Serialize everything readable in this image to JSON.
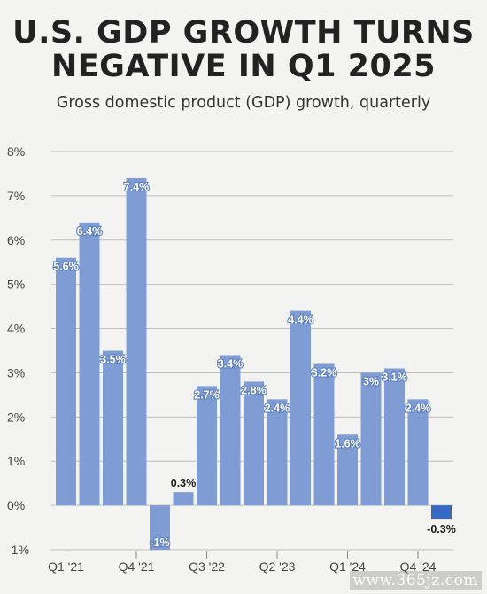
{
  "header": {
    "title_line1": "U.S. GDP GROWTH TURNS",
    "title_line2": "NEGATIVE IN Q1 2025",
    "subtitle": "Gross domestic product (GDP) growth, quarterly"
  },
  "watermark": "www.365jz.com",
  "colors": {
    "bar": "#7f9dd4",
    "bar_highlight": "#3768c4",
    "grid": "#bdbdbd",
    "axis_text": "#444444",
    "background": "#f3f3f2"
  },
  "chart_data": {
    "type": "bar",
    "title": "U.S. GDP GROWTH TURNS NEGATIVE IN Q1 2025",
    "subtitle": "Gross domestic product (GDP) growth, quarterly",
    "xlabel": "",
    "ylabel": "",
    "ylim": [
      -1,
      8
    ],
    "yticks": [
      -1,
      0,
      1,
      2,
      3,
      4,
      5,
      6,
      7,
      8
    ],
    "ytick_labels": [
      "-1%",
      "0%",
      "1%",
      "2%",
      "3%",
      "4%",
      "5%",
      "6%",
      "7%",
      "8%"
    ],
    "x_tick_labels": [
      "Q1 '21",
      "Q4 '21",
      "Q3 '22",
      "Q2 '23",
      "Q1 '24",
      "Q4 '24"
    ],
    "x_tick_positions": [
      0,
      3,
      6,
      9,
      12,
      15
    ],
    "grid": true,
    "values": [
      5.6,
      6.4,
      3.5,
      7.4,
      -1,
      0.3,
      2.7,
      3.4,
      2.8,
      2.4,
      4.4,
      3.2,
      1.6,
      3,
      3.1,
      2.4,
      -0.3
    ],
    "labels": [
      "5.6%",
      "6.4%",
      "3.5%",
      "7.4%",
      "-1%",
      "0.3%",
      "2.7%",
      "3.4%",
      "2.8%",
      "2.4%",
      "4.4%",
      "3.2%",
      "1.6%",
      "3%",
      "3.1%",
      "2.4%",
      "-0.3%"
    ],
    "highlight_index": 16
  }
}
